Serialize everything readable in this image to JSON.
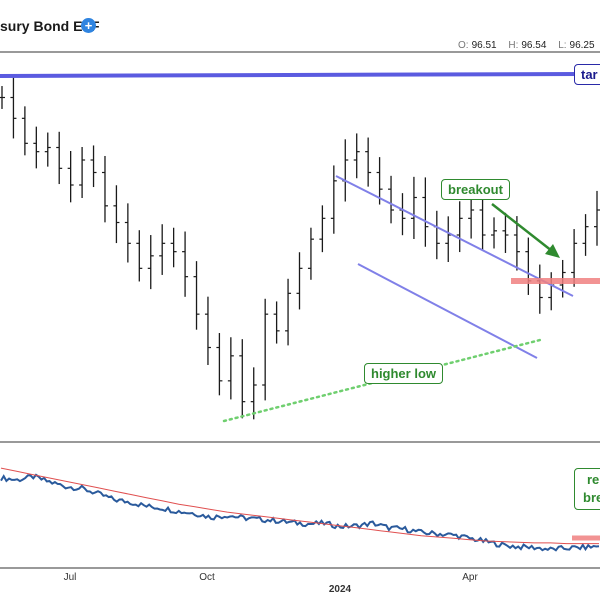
{
  "header": {
    "title": "sury Bond ETF",
    "info_icon": "plus-circle-icon",
    "ohlc": [
      {
        "key": "O:",
        "value": "96.51"
      },
      {
        "key": "H:",
        "value": "96.54"
      },
      {
        "key": "L:",
        "value": "96.25"
      }
    ]
  },
  "annotations": {
    "target": "tar",
    "breakout": "breakout",
    "higher_low": "higher low",
    "relative_line1": "re",
    "relative_line2": "bre"
  },
  "colors": {
    "target_line": "#5b5be0",
    "channel": "#8080e8",
    "resistance": "#f08080",
    "higher_low_line": "#6fcf6f",
    "arrow": "#2f8a2f",
    "price_bars": "#1a1a1a",
    "relative_line": "#2a5a9c",
    "relative_ma": "#e05050"
  },
  "x_ticks": [
    {
      "label": "Jul",
      "bold": false
    },
    {
      "label": "Oct",
      "bold": false
    },
    {
      "label": "2024",
      "bold": true
    },
    {
      "label": "Apr",
      "bold": false
    }
  ],
  "chart_data": [
    {
      "type": "ohlc",
      "panel": "price",
      "x_start": "2023-05-22",
      "x_end": "2024-05-24",
      "x_ticks": [
        "Jul",
        "Oct",
        "2024",
        "Apr"
      ],
      "series": [
        {
          "name": "price_weekly",
          "dates": [
            "2023-05-22",
            "2023-05-29",
            "2023-06-05",
            "2023-06-12",
            "2023-06-19",
            "2023-06-26",
            "2023-07-03",
            "2023-07-10",
            "2023-07-17",
            "2023-07-24",
            "2023-07-31",
            "2023-08-07",
            "2023-08-14",
            "2023-08-21",
            "2023-08-28",
            "2023-09-04",
            "2023-09-11",
            "2023-09-18",
            "2023-09-25",
            "2023-10-02",
            "2023-10-09",
            "2023-10-16",
            "2023-10-23",
            "2023-10-30",
            "2023-11-06",
            "2023-11-13",
            "2023-11-20",
            "2023-11-27",
            "2023-12-04",
            "2023-12-11",
            "2023-12-18",
            "2023-12-25",
            "2024-01-01",
            "2024-01-08",
            "2024-01-15",
            "2024-01-22",
            "2024-01-29",
            "2024-02-05",
            "2024-02-12",
            "2024-02-19",
            "2024-02-26",
            "2024-03-04",
            "2024-03-11",
            "2024-03-18",
            "2024-03-25",
            "2024-04-01",
            "2024-04-08",
            "2024-04-15",
            "2024-04-22",
            "2024-04-29",
            "2024-05-06",
            "2024-05-13",
            "2024-05-20"
          ],
          "values": [
            99.1,
            98.6,
            98.0,
            97.8,
            97.9,
            97.4,
            97.0,
            97.6,
            97.3,
            96.5,
            96.1,
            95.6,
            95.0,
            95.3,
            95.6,
            95.4,
            94.8,
            93.9,
            93.1,
            92.3,
            92.9,
            91.8,
            92.2,
            93.9,
            93.5,
            94.4,
            95.0,
            95.7,
            96.2,
            97.1,
            97.6,
            97.8,
            97.3,
            96.9,
            96.4,
            96.2,
            96.7,
            96.0,
            95.6,
            95.8,
            96.2,
            96.4,
            95.8,
            95.9,
            95.8,
            95.4,
            94.7,
            94.3,
            94.6,
            94.9,
            95.6,
            96.0,
            96.4
          ]
        }
      ],
      "annotations": [
        {
          "label": "tar",
          "kind": "horizontal line"
        },
        {
          "label": "breakout",
          "kind": "arrow"
        },
        {
          "label": "higher low",
          "kind": "dotted trendline"
        }
      ]
    },
    {
      "type": "line",
      "panel": "relative",
      "series": [
        {
          "name": "ratio",
          "values": [
            0.525,
            0.522,
            0.527,
            0.519,
            0.512,
            0.509,
            0.501,
            0.492,
            0.488,
            0.482,
            0.479,
            0.474,
            0.471,
            0.465,
            0.468,
            0.464,
            0.462,
            0.46,
            0.457,
            0.455,
            0.456,
            0.451,
            0.452,
            0.456,
            0.449,
            0.447,
            0.442,
            0.44,
            0.438,
            0.433,
            0.428,
            0.423,
            0.42,
            0.419,
            0.416,
            0.418,
            0.419,
            0.421
          ]
        },
        {
          "name": "moving_average",
          "values": [
            0.54,
            0.535,
            0.53,
            0.525,
            0.52,
            0.515,
            0.51,
            0.505,
            0.5,
            0.495,
            0.49,
            0.485,
            0.481,
            0.477,
            0.473,
            0.47,
            0.467,
            0.464,
            0.461,
            0.458,
            0.455,
            0.452,
            0.449,
            0.446,
            0.443,
            0.44,
            0.437,
            0.435,
            0.433,
            0.431,
            0.429,
            0.428,
            0.427,
            0.426,
            0.426,
            0.425,
            0.425,
            0.425
          ]
        }
      ],
      "annotations": [
        {
          "label": "re bre",
          "kind": "text box"
        }
      ]
    }
  ]
}
